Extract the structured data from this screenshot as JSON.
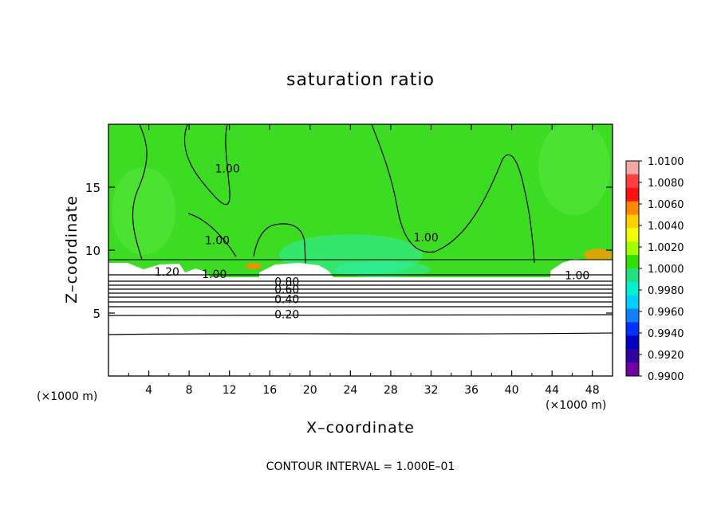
{
  "chart_data": {
    "type": "heatmap",
    "title": "saturation ratio",
    "xlabel": "X–coordinate",
    "ylabel": "Z–coordinate",
    "x_unit_left": "(×1000 m)",
    "x_unit_right": "(×1000 m)",
    "footnote": "CONTOUR INTERVAL = 1.000E–01",
    "xlim": [
      0,
      50
    ],
    "ylim": [
      0,
      20
    ],
    "x_ticks": [
      {
        "value": 4,
        "label": "4"
      },
      {
        "value": 8,
        "label": "8"
      },
      {
        "value": 12,
        "label": "12"
      },
      {
        "value": 16,
        "label": "16"
      },
      {
        "value": 20,
        "label": "20"
      },
      {
        "value": 24,
        "label": "24"
      },
      {
        "value": 28,
        "label": "28"
      },
      {
        "value": 32,
        "label": "32"
      },
      {
        "value": 36,
        "label": "36"
      },
      {
        "value": 40,
        "label": "40"
      },
      {
        "value": 44,
        "label": "44"
      },
      {
        "value": 48,
        "label": "48"
      }
    ],
    "y_ticks": [
      {
        "value": 5,
        "label": "5"
      },
      {
        "value": 10,
        "label": "10"
      },
      {
        "value": 15,
        "label": "15"
      }
    ],
    "colorbar": {
      "labels": [
        "1.0100",
        "1.0080",
        "1.0060",
        "1.0040",
        "1.0020",
        "1.0000",
        "0.9980",
        "0.9960",
        "0.9940",
        "0.9920",
        "0.9900"
      ],
      "colors": [
        "#f4a6a6",
        "#ff4040",
        "#ff1010",
        "#ff8800",
        "#ffd000",
        "#f0ff00",
        "#a0ff00",
        "#30e000",
        "#20e080",
        "#00f0d0",
        "#00d0ff",
        "#1080ff",
        "#0030ff",
        "#0000c0",
        "#3000a0",
        "#7000a0"
      ]
    },
    "fill_colors": {
      "main": "#3cdc22",
      "light": "#58e83e",
      "cyan": "#2ef0a8",
      "white": "#ffffff"
    },
    "contour_labels": [
      {
        "x": 11.8,
        "y": 16.5,
        "text": "1.00"
      },
      {
        "x": 10.8,
        "y": 10.8,
        "text": "1.00"
      },
      {
        "x": 31.5,
        "y": 11.0,
        "text": "1.00"
      },
      {
        "x": 5.8,
        "y": 8.3,
        "text": "1.20"
      },
      {
        "x": 10.5,
        "y": 8.1,
        "text": "1.00"
      },
      {
        "x": 17.7,
        "y": 7.5,
        "text": "0.80"
      },
      {
        "x": 17.7,
        "y": 6.9,
        "text": "0.60"
      },
      {
        "x": 17.7,
        "y": 6.1,
        "text": "0.40"
      },
      {
        "x": 17.7,
        "y": 4.9,
        "text": "0.20"
      },
      {
        "x": 46.5,
        "y": 8.0,
        "text": "1.00"
      }
    ]
  }
}
